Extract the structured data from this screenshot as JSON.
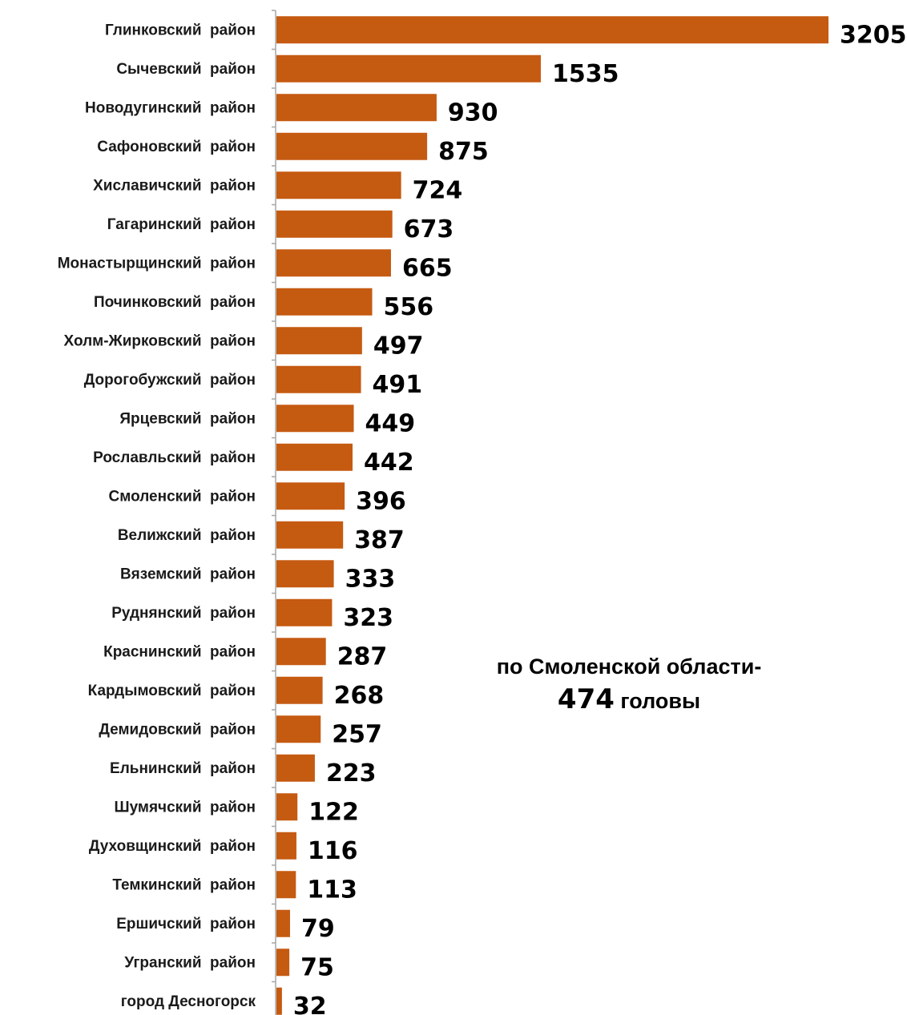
{
  "chart_data": {
    "type": "bar",
    "orientation": "horizontal",
    "bar_color": "#C55A11",
    "categories": [
      "Глинковский  район",
      "Сычевский  район",
      "Новодугинский  район",
      "Сафоновский  район",
      "Хиславичский  район",
      "Гагаринский  район",
      "Монастырщинский  район",
      "Починковский  район",
      "Холм-Жирковский  район",
      "Дорогобужский  район",
      "Ярцевский  район",
      "Рославльский  район",
      "Смоленский  район",
      "Велижский  район",
      "Вяземский  район",
      "Руднянский  район",
      "Краснинский  район",
      "Кардымовский  район",
      "Демидовский  район",
      "Ельнинский  район",
      "Шумячский  район",
      "Духовщинский  район",
      "Темкинский  район",
      "Ершичский  район",
      "Угранский  район",
      "город Десногорск"
    ],
    "values": [
      3205,
      1535,
      930,
      875,
      724,
      673,
      665,
      556,
      497,
      491,
      449,
      442,
      396,
      387,
      333,
      323,
      287,
      268,
      257,
      223,
      122,
      116,
      113,
      79,
      75,
      32
    ],
    "data_labels": [
      "3205",
      "1535",
      "930",
      "875",
      "724",
      "673",
      "665",
      "556",
      "497",
      "491",
      "449",
      "442",
      "396",
      "387",
      "333",
      "323",
      "287",
      "268",
      "257",
      "223",
      "122",
      "116",
      "113",
      "79",
      "75",
      "32"
    ],
    "xlim": [
      0,
      3205
    ],
    "grid": false,
    "legend": "none",
    "annotation": {
      "line1": "по Смоленской области-",
      "value": "474",
      "unit": " головы"
    }
  }
}
